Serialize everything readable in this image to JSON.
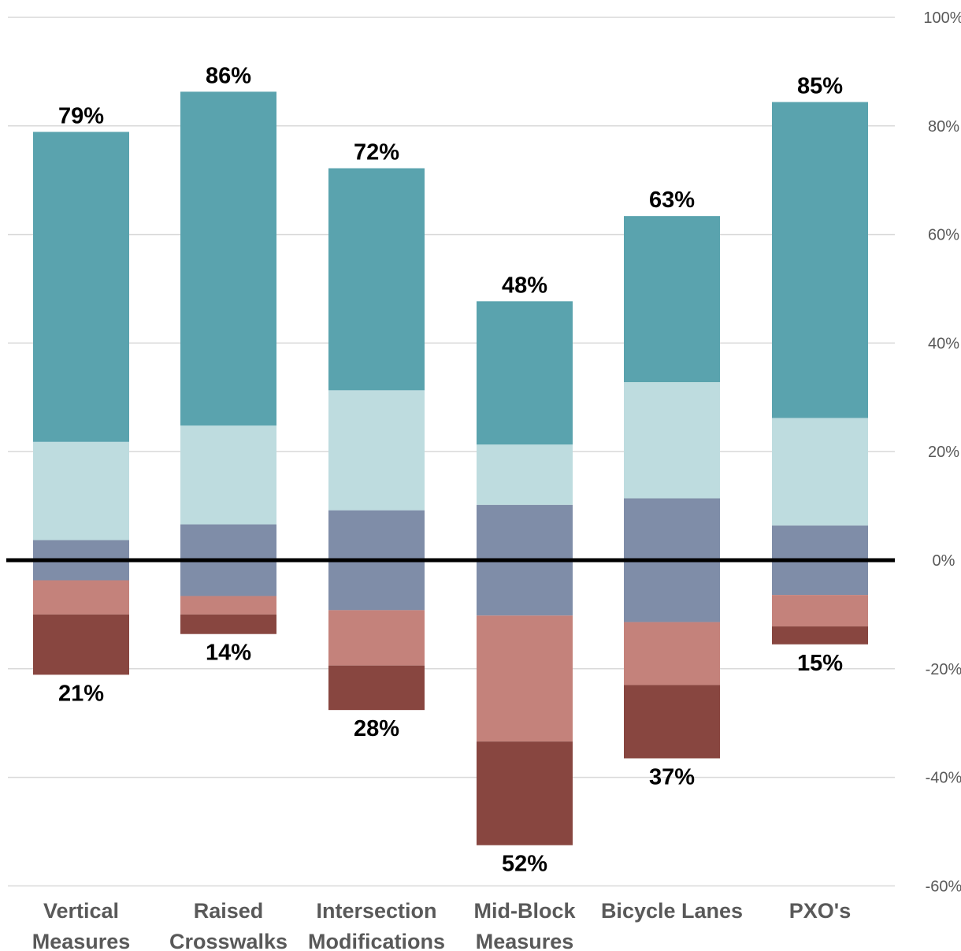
{
  "chart_data": {
    "type": "bar",
    "stacked": "diverging",
    "categories": [
      [
        "Vertical",
        "Measures"
      ],
      [
        "Raised",
        "Crosswalks"
      ],
      [
        "Intersection",
        "Modifications"
      ],
      [
        "Mid-Block",
        "Measures"
      ],
      [
        "Bicycle Lanes"
      ],
      [
        "PXO's"
      ]
    ],
    "series_positive": [
      {
        "color": "#7f8da8",
        "values": [
          3.7,
          6.6,
          9.2,
          10.2,
          11.4,
          6.4
        ]
      },
      {
        "color": "#bedcdf",
        "values": [
          18.1,
          18.2,
          22.1,
          11.1,
          21.4,
          19.8
        ]
      },
      {
        "color": "#5aa3ae",
        "values": [
          57.1,
          61.5,
          40.9,
          26.4,
          30.6,
          58.2
        ]
      }
    ],
    "series_negative": [
      {
        "color": "#7f8da8",
        "values": [
          3.7,
          6.6,
          9.2,
          10.2,
          11.4,
          6.4
        ]
      },
      {
        "color": "#c4827b",
        "values": [
          6.3,
          3.4,
          10.2,
          23.2,
          11.6,
          5.8
        ]
      },
      {
        "color": "#884640",
        "values": [
          11.1,
          3.6,
          8.2,
          19.1,
          13.5,
          3.3
        ]
      }
    ],
    "positive_totals": [
      "79%",
      "86%",
      "72%",
      "48%",
      "63%",
      "85%"
    ],
    "negative_totals": [
      "21%",
      "14%",
      "28%",
      "52%",
      "37%",
      "15%"
    ],
    "ylim": [
      -60,
      100
    ],
    "yticks": [
      100,
      80,
      60,
      40,
      20,
      0,
      -20,
      -40,
      -60
    ],
    "ytick_labels": [
      "100%",
      "80%",
      "60%",
      "40%",
      "20%",
      "0%",
      "-20%",
      "-40%",
      "-60%"
    ],
    "y_axis_side": "right",
    "grid": true,
    "zero_line_color": "#000000",
    "grid_color": "#d9d9d9"
  }
}
